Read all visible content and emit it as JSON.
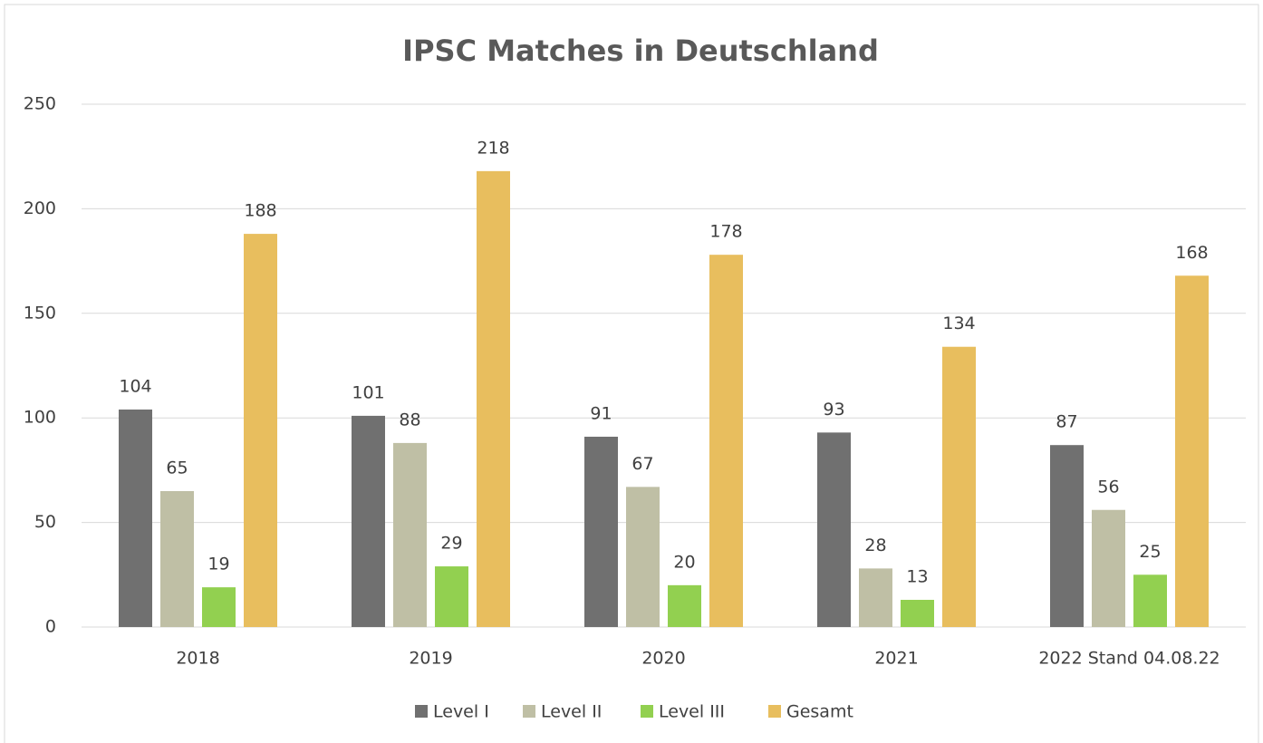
{
  "chart_data": {
    "type": "bar",
    "title": "IPSC Matches in Deutschland",
    "categories": [
      "2018",
      "2019",
      "2020",
      "2021",
      "2022 Stand 04.08.22"
    ],
    "series": [
      {
        "name": "Level I",
        "color": "#707070",
        "values": [
          104,
          101,
          91,
          93,
          87
        ]
      },
      {
        "name": "Level II",
        "color": "#bfbfa5",
        "values": [
          65,
          88,
          67,
          28,
          56
        ]
      },
      {
        "name": "Level III",
        "color": "#92d050",
        "values": [
          19,
          29,
          20,
          13,
          25
        ]
      },
      {
        "name": "Gesamt",
        "color": "#e8be5e",
        "values": [
          188,
          218,
          178,
          134,
          168
        ]
      }
    ],
    "ylim": [
      0,
      250
    ],
    "yticks": [
      0,
      50,
      100,
      150,
      200,
      250
    ],
    "grid": true,
    "legend": "bottom"
  }
}
